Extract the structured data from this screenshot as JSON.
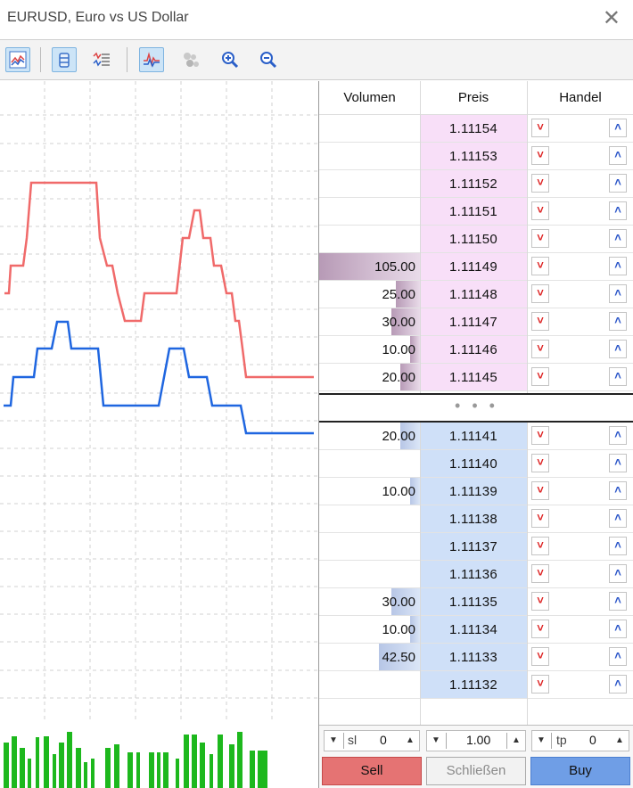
{
  "window": {
    "title": "EURUSD, Euro vs US Dollar",
    "close_icon": "close-icon"
  },
  "toolbar": {
    "buttons": [
      {
        "icon": "chart-toggle-icon",
        "active": true
      },
      {
        "icon": "candle-icon",
        "active": true
      },
      {
        "icon": "list-lines-icon",
        "active": false
      },
      {
        "icon": "tick-chart-icon",
        "active": true
      },
      {
        "icon": "bubbles-icon",
        "active": false
      },
      {
        "icon": "zoom-in-icon",
        "active": false
      },
      {
        "icon": "zoom-out-icon",
        "active": false
      }
    ]
  },
  "dom": {
    "headers": {
      "volume": "Volumen",
      "price": "Preis",
      "trade": "Handel"
    },
    "asks": [
      {
        "price": "1.11154",
        "volume": ""
      },
      {
        "price": "1.11153",
        "volume": ""
      },
      {
        "price": "1.11152",
        "volume": ""
      },
      {
        "price": "1.11151",
        "volume": ""
      },
      {
        "price": "1.11150",
        "volume": ""
      },
      {
        "price": "1.11149",
        "volume": "105.00"
      },
      {
        "price": "1.11148",
        "volume": "25.00"
      },
      {
        "price": "1.11147",
        "volume": "30.00"
      },
      {
        "price": "1.11146",
        "volume": "10.00"
      },
      {
        "price": "1.11145",
        "volume": "20.00"
      }
    ],
    "spread_dots": "• • •",
    "bids": [
      {
        "price": "1.11141",
        "volume": "20.00"
      },
      {
        "price": "1.11140",
        "volume": ""
      },
      {
        "price": "1.11139",
        "volume": "10.00"
      },
      {
        "price": "1.11138",
        "volume": ""
      },
      {
        "price": "1.11137",
        "volume": ""
      },
      {
        "price": "1.11136",
        "volume": ""
      },
      {
        "price": "1.11135",
        "volume": "30.00"
      },
      {
        "price": "1.11134",
        "volume": "10.00"
      },
      {
        "price": "1.11133",
        "volume": "42.50"
      },
      {
        "price": "1.11132",
        "volume": ""
      }
    ],
    "sell_arrow": "˅",
    "buy_arrow": "˄"
  },
  "controls": {
    "sl": {
      "label": "sl",
      "value": "0"
    },
    "volume": {
      "value": "1.00"
    },
    "tp": {
      "label": "tp",
      "value": "0"
    },
    "down_glyph": "▼",
    "up_glyph": "▲"
  },
  "buttons": {
    "sell": "Sell",
    "close": "Schließen",
    "buy": "Buy"
  },
  "colors": {
    "ask_line": "#f06a6a",
    "bid_line": "#1f66e0",
    "ask_bg": "#f8dff8",
    "bid_bg": "#cfe0f8",
    "volume_bars": "#1db81d"
  }
}
